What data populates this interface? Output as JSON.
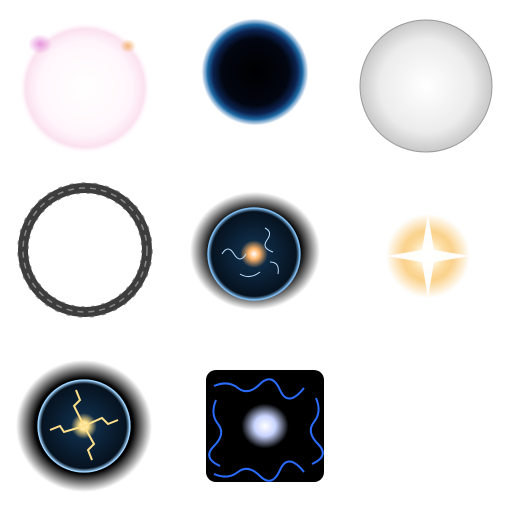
{
  "sheet": {
    "background": "#ffffff",
    "columns": 3,
    "rows": 3
  },
  "frames": [
    {
      "icon": "soft-pink-glow-orb-icon",
      "colors": {
        "core": "#ffffff",
        "rim": "#f4c6e8",
        "accent": "#f2b27a"
      }
    },
    {
      "icon": "black-hole-orb-icon",
      "colors": {
        "core": "#000000",
        "mid": "#0a1a3c",
        "rim": "#1f6aa8"
      }
    },
    {
      "icon": "white-sphere-icon",
      "colors": {
        "core": "#ffffff",
        "edge": "#cfcfcf",
        "outline": "#9a9a9a"
      }
    },
    {
      "icon": "dark-ring-icon",
      "colors": {
        "stroke": "#3d3d3d",
        "highlight": "#9a9a9a"
      }
    },
    {
      "icon": "electric-bubble-dark-icon",
      "colors": {
        "halo": "#000000",
        "bubble": "#0e2a44",
        "spark": "#ffd79a",
        "arc": "#7fbcf0"
      }
    },
    {
      "icon": "orange-star-flare-icon",
      "colors": {
        "core": "#ffffff",
        "glow": "#f7b440"
      }
    },
    {
      "icon": "electric-bubble-gold-icon",
      "colors": {
        "halo": "#000000",
        "bubble": "#0e2a44",
        "spark": "#ffe08a",
        "arc": "#9fd4ff"
      }
    },
    {
      "icon": "blue-lightning-square-icon",
      "colors": {
        "bg": "#000000",
        "arc": "#2a6cff",
        "core": "#ffffff"
      }
    }
  ]
}
